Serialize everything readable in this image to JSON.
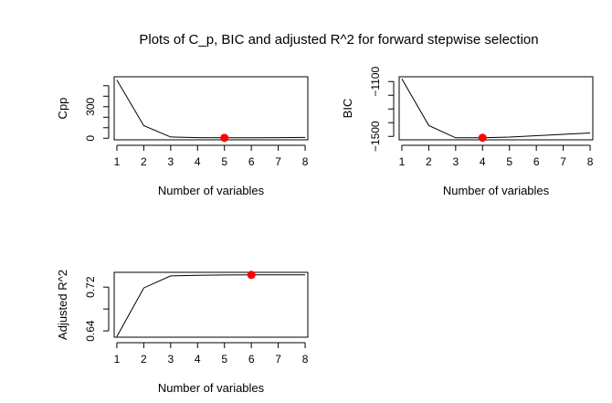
{
  "title": "Plots of C_p, BIC and adjusted R^2 for forward stepwise selection",
  "colors": {
    "line": "#000000",
    "highlight": "#ff0000",
    "background": "#ffffff"
  },
  "chart_data": [
    {
      "type": "line",
      "name": "cp",
      "xlabel": "Number of variables",
      "ylabel": "Cpp",
      "x": [
        1,
        2,
        3,
        4,
        5,
        6,
        7,
        8
      ],
      "values": [
        555,
        120,
        12,
        6,
        4,
        5,
        6,
        8
      ],
      "xlim": [
        0.9,
        8.1
      ],
      "ylim": [
        -15,
        585
      ],
      "xticks": [
        1,
        2,
        3,
        4,
        5,
        6,
        7,
        8
      ],
      "yticks": [
        0,
        100,
        200,
        300,
        400,
        500
      ],
      "ytick_labels": [
        "0",
        "",
        "",
        "300",
        "",
        ""
      ],
      "highlight": {
        "x": 5,
        "y": 4
      }
    },
    {
      "type": "line",
      "name": "bic",
      "xlabel": "Number of variables",
      "ylabel": "BIC",
      "x": [
        1,
        2,
        3,
        4,
        5,
        6,
        7,
        8
      ],
      "values": [
        -1080,
        -1420,
        -1510,
        -1510,
        -1505,
        -1495,
        -1485,
        -1475
      ],
      "xlim": [
        0.9,
        8.1
      ],
      "ylim": [
        -1525,
        -1065
      ],
      "xticks": [
        1,
        2,
        3,
        4,
        5,
        6,
        7,
        8
      ],
      "yticks": [
        -1500,
        -1400,
        -1300,
        -1200,
        -1100
      ],
      "ytick_labels": [
        "−1500",
        "",
        "",
        "",
        "−1100"
      ],
      "highlight": {
        "x": 4,
        "y": -1510
      }
    },
    {
      "type": "line",
      "name": "adjr2",
      "xlabel": "Number of variables",
      "ylabel": "Adjusted R^2",
      "x": [
        1,
        2,
        3,
        4,
        5,
        6,
        7,
        8
      ],
      "values": [
        0.6295,
        0.7185,
        0.7405,
        0.7417,
        0.7422,
        0.7424,
        0.7423,
        0.7423
      ],
      "xlim": [
        0.9,
        8.1
      ],
      "ylim": [
        0.6285,
        0.747
      ],
      "xticks": [
        1,
        2,
        3,
        4,
        5,
        6,
        7,
        8
      ],
      "yticks": [
        0.64,
        0.68,
        0.72
      ],
      "ytick_labels": [
        "0.64",
        "",
        "0.72"
      ],
      "highlight": {
        "x": 6,
        "y": 0.7424
      }
    }
  ]
}
